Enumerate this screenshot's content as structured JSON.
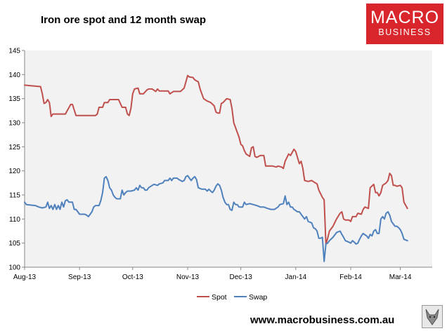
{
  "header": {
    "title": "Iron ore spot and 12 month swap"
  },
  "logo": {
    "line1": "MACRO",
    "line2": "BUSINESS"
  },
  "footer": {
    "url": "www.macrobusiness.com.au"
  },
  "chart_data": {
    "type": "line",
    "title": "Iron ore spot and 12 month swap",
    "xlabel": "",
    "ylabel": "",
    "ylim": [
      100,
      145
    ],
    "yticks": [
      100,
      105,
      110,
      115,
      120,
      125,
      130,
      135,
      140,
      145
    ],
    "xlim": [
      0,
      230
    ],
    "xticks": [
      {
        "label": "Aug-13",
        "x": 0
      },
      {
        "label": "Sep-13",
        "x": 31
      },
      {
        "label": "Oct-13",
        "x": 61
      },
      {
        "label": "Nov-13",
        "x": 92
      },
      {
        "label": "Dec-13",
        "x": 122
      },
      {
        "label": "Jan-14",
        "x": 153
      },
      {
        "label": "Feb-14",
        "x": 184
      },
      {
        "label": "Mar-14",
        "x": 212
      }
    ],
    "grid": false,
    "legend_position": "bottom-center",
    "colors": {
      "Spot": "#c0504d",
      "Swap": "#4f81bd",
      "plot_background": "#f2f2f2",
      "axis": "#868686"
    },
    "series": [
      {
        "name": "Spot",
        "points": [
          [
            0,
            137.8
          ],
          [
            3,
            137.7
          ],
          [
            9,
            137.5
          ],
          [
            10,
            136.0
          ],
          [
            11,
            134.0
          ],
          [
            12,
            134.2
          ],
          [
            13,
            134.8
          ],
          [
            14,
            134.2
          ],
          [
            15,
            131.3
          ],
          [
            16,
            131.8
          ],
          [
            23,
            131.8
          ],
          [
            26,
            133.8
          ],
          [
            27,
            133.8
          ],
          [
            29,
            131.5
          ],
          [
            30,
            131.5
          ],
          [
            40,
            131.5
          ],
          [
            41,
            131.8
          ],
          [
            42,
            133.2
          ],
          [
            44,
            133.2
          ],
          [
            45,
            134.2
          ],
          [
            47,
            134.2
          ],
          [
            48,
            134.8
          ],
          [
            53,
            134.8
          ],
          [
            55,
            133.2
          ],
          [
            57,
            133.2
          ],
          [
            58,
            131.8
          ],
          [
            59,
            131.5
          ],
          [
            60,
            133.0
          ],
          [
            61,
            136.0
          ],
          [
            62,
            137.0
          ],
          [
            64,
            137.2
          ],
          [
            65,
            136.0
          ],
          [
            67,
            136.0
          ],
          [
            69,
            136.8
          ],
          [
            70,
            137.0
          ],
          [
            72,
            137.0
          ],
          [
            74,
            136.5
          ],
          [
            75,
            137.0
          ],
          [
            76,
            136.6
          ],
          [
            78,
            136.6
          ],
          [
            81,
            136.6
          ],
          [
            82,
            136.0
          ],
          [
            84,
            136.5
          ],
          [
            86,
            136.5
          ],
          [
            88,
            136.5
          ],
          [
            90,
            137.2
          ],
          [
            92,
            139.8
          ],
          [
            93,
            139.5
          ],
          [
            95,
            139.4
          ],
          [
            96,
            138.9
          ],
          [
            98,
            138.5
          ],
          [
            99,
            137.0
          ],
          [
            101,
            135.0
          ],
          [
            103,
            134.5
          ],
          [
            105,
            134.2
          ],
          [
            107,
            133.5
          ],
          [
            108,
            132.2
          ],
          [
            109,
            132.0
          ],
          [
            110,
            132.0
          ],
          [
            111,
            134.0
          ],
          [
            112,
            134.2
          ],
          [
            114,
            135.0
          ],
          [
            116,
            134.8
          ],
          [
            117,
            133.0
          ],
          [
            118,
            130.0
          ],
          [
            119,
            129.0
          ],
          [
            121,
            127.0
          ],
          [
            122,
            125.5
          ],
          [
            123,
            125.2
          ],
          [
            124,
            124.2
          ],
          [
            125,
            123.5
          ],
          [
            127,
            123.0
          ],
          [
            128,
            124.8
          ],
          [
            129,
            125.0
          ],
          [
            130,
            123.0
          ],
          [
            131,
            122.8
          ],
          [
            133,
            123.2
          ],
          [
            135,
            123.2
          ],
          [
            136,
            121.0
          ],
          [
            140,
            121.0
          ],
          [
            142,
            120.8
          ],
          [
            143,
            121.0
          ],
          [
            145,
            120.8
          ],
          [
            146,
            120.5
          ],
          [
            147,
            122.0
          ],
          [
            149,
            123.5
          ],
          [
            150,
            123.2
          ],
          [
            152,
            124.5
          ],
          [
            153,
            124.0
          ],
          [
            155,
            121.5
          ],
          [
            156,
            122.0
          ],
          [
            157,
            120.5
          ],
          [
            158,
            118.0
          ],
          [
            160,
            117.8
          ],
          [
            162,
            118.0
          ],
          [
            164,
            117.5
          ],
          [
            165,
            117.3
          ],
          [
            166,
            116.0
          ],
          [
            168,
            114.5
          ],
          [
            169,
            114.0
          ],
          [
            170,
            104.8
          ],
          [
            171,
            106.0
          ],
          [
            172,
            107.5
          ],
          [
            174,
            108.5
          ],
          [
            176,
            110.0
          ],
          [
            178,
            111.2
          ],
          [
            179,
            111.5
          ],
          [
            180,
            110.0
          ],
          [
            181,
            109.8
          ],
          [
            183,
            109.8
          ],
          [
            184,
            109.5
          ],
          [
            185,
            110.5
          ],
          [
            187,
            110.5
          ],
          [
            188,
            111.2
          ],
          [
            190,
            111.0
          ],
          [
            191,
            112.0
          ],
          [
            192,
            112.5
          ],
          [
            194,
            112.2
          ],
          [
            195,
            116.5
          ],
          [
            197,
            117.2
          ],
          [
            198,
            115.5
          ],
          [
            199,
            115.5
          ],
          [
            200,
            114.8
          ],
          [
            201,
            115.5
          ],
          [
            202,
            117.0
          ],
          [
            204,
            117.5
          ],
          [
            205,
            118.0
          ],
          [
            206,
            119.5
          ],
          [
            207,
            119.0
          ],
          [
            208,
            117.0
          ],
          [
            209,
            117.0
          ],
          [
            210,
            116.8
          ],
          [
            212,
            117.0
          ],
          [
            213,
            116.5
          ],
          [
            214,
            113.5
          ],
          [
            216,
            112.2
          ]
        ]
      },
      {
        "name": "Swap",
        "points": [
          [
            0,
            113.5
          ],
          [
            1,
            113.0
          ],
          [
            6,
            112.8
          ],
          [
            8,
            112.5
          ],
          [
            10,
            112.3
          ],
          [
            12,
            112.5
          ],
          [
            13,
            113.5
          ],
          [
            14,
            112.2
          ],
          [
            15,
            112.8
          ],
          [
            16,
            112.0
          ],
          [
            17,
            113.0
          ],
          [
            18,
            112.0
          ],
          [
            19,
            112.8
          ],
          [
            20,
            112.0
          ],
          [
            21,
            113.5
          ],
          [
            22,
            112.5
          ],
          [
            23,
            113.8
          ],
          [
            24,
            114.0
          ],
          [
            25,
            113.5
          ],
          [
            27,
            113.5
          ],
          [
            28,
            112.0
          ],
          [
            29,
            112.0
          ],
          [
            30,
            111.5
          ],
          [
            31,
            111.0
          ],
          [
            34,
            111.0
          ],
          [
            35,
            110.8
          ],
          [
            36,
            110.5
          ],
          [
            37,
            111.0
          ],
          [
            38,
            111.5
          ],
          [
            39,
            112.5
          ],
          [
            40,
            112.8
          ],
          [
            42,
            112.8
          ],
          [
            43,
            113.8
          ],
          [
            44,
            115.5
          ],
          [
            45,
            118.5
          ],
          [
            46,
            118.8
          ],
          [
            47,
            118.0
          ],
          [
            48,
            116.5
          ],
          [
            49,
            116.0
          ],
          [
            50,
            115.0
          ],
          [
            51,
            114.5
          ],
          [
            52,
            114.2
          ],
          [
            54,
            114.2
          ],
          [
            55,
            116.0
          ],
          [
            56,
            115.0
          ],
          [
            57,
            115.5
          ],
          [
            58,
            115.8
          ],
          [
            60,
            115.8
          ],
          [
            62,
            116.0
          ],
          [
            63,
            116.5
          ],
          [
            64,
            116.0
          ],
          [
            65,
            117.0
          ],
          [
            66,
            116.5
          ],
          [
            67,
            116.5
          ],
          [
            68,
            116.0
          ],
          [
            69,
            116.0
          ],
          [
            70,
            116.5
          ],
          [
            72,
            117.0
          ],
          [
            73,
            117.2
          ],
          [
            75,
            117.0
          ],
          [
            76,
            117.3
          ],
          [
            78,
            117.5
          ],
          [
            79,
            118.0
          ],
          [
            81,
            118.0
          ],
          [
            82,
            118.5
          ],
          [
            83,
            118.0
          ],
          [
            84,
            118.5
          ],
          [
            86,
            118.5
          ],
          [
            87,
            118.2
          ],
          [
            89,
            117.8
          ],
          [
            90,
            118.0
          ],
          [
            91,
            118.8
          ],
          [
            92,
            119.0
          ],
          [
            93,
            118.5
          ],
          [
            94,
            118.0
          ],
          [
            95,
            118.5
          ],
          [
            96,
            118.8
          ],
          [
            97,
            118.2
          ],
          [
            98,
            116.5
          ],
          [
            100,
            116.2
          ],
          [
            102,
            116.2
          ],
          [
            103,
            115.8
          ],
          [
            104,
            116.2
          ],
          [
            105,
            115.8
          ],
          [
            106,
            115.5
          ],
          [
            107,
            116.0
          ],
          [
            108,
            116.8
          ],
          [
            109,
            117.3
          ],
          [
            110,
            117.0
          ],
          [
            111,
            116.0
          ],
          [
            112,
            114.5
          ],
          [
            113,
            113.5
          ],
          [
            114,
            113.0
          ],
          [
            115,
            113.0
          ],
          [
            116,
            112.0
          ],
          [
            117,
            111.8
          ],
          [
            118,
            113.5
          ],
          [
            119,
            113.0
          ],
          [
            120,
            113.0
          ],
          [
            121,
            112.5
          ],
          [
            123,
            112.5
          ],
          [
            124,
            113.5
          ],
          [
            125,
            113.0
          ],
          [
            127,
            113.2
          ],
          [
            129,
            113.0
          ],
          [
            131,
            112.8
          ],
          [
            133,
            112.5
          ],
          [
            135,
            112.5
          ],
          [
            137,
            112.2
          ],
          [
            139,
            112.0
          ],
          [
            141,
            112.0
          ],
          [
            143,
            112.5
          ],
          [
            144,
            113.0
          ],
          [
            146,
            113.2
          ],
          [
            147,
            114.8
          ],
          [
            148,
            113.0
          ],
          [
            149,
            113.5
          ],
          [
            150,
            112.5
          ],
          [
            151,
            112.5
          ],
          [
            152,
            112.0
          ],
          [
            154,
            111.5
          ],
          [
            155,
            111.5
          ],
          [
            157,
            110.5
          ],
          [
            158,
            110.0
          ],
          [
            159,
            110.5
          ],
          [
            160,
            109.5
          ],
          [
            162,
            109.2
          ],
          [
            163,
            108.2
          ],
          [
            164,
            108.0
          ],
          [
            165,
            107.5
          ],
          [
            166,
            106.0
          ],
          [
            167,
            106.0
          ],
          [
            168,
            106.2
          ],
          [
            169,
            101.2
          ],
          [
            170,
            104.8
          ],
          [
            171,
            105.0
          ],
          [
            172,
            105.5
          ],
          [
            174,
            106.2
          ],
          [
            176,
            107.2
          ],
          [
            178,
            107.5
          ],
          [
            179,
            106.8
          ],
          [
            180,
            106.2
          ],
          [
            181,
            105.5
          ],
          [
            183,
            105.2
          ],
          [
            184,
            105.0
          ],
          [
            185,
            105.5
          ],
          [
            186,
            105.2
          ],
          [
            187,
            104.8
          ],
          [
            188,
            105.0
          ],
          [
            189,
            105.8
          ],
          [
            190,
            106.5
          ],
          [
            191,
            107.0
          ],
          [
            193,
            106.5
          ],
          [
            194,
            106.0
          ],
          [
            195,
            106.8
          ],
          [
            196,
            106.5
          ],
          [
            197,
            107.5
          ],
          [
            198,
            107.8
          ],
          [
            199,
            107.0
          ],
          [
            200,
            107.0
          ],
          [
            201,
            110.0
          ],
          [
            202,
            110.5
          ],
          [
            203,
            110.0
          ],
          [
            204,
            111.2
          ],
          [
            205,
            111.5
          ],
          [
            206,
            110.8
          ],
          [
            207,
            109.5
          ],
          [
            208,
            109.0
          ],
          [
            209,
            108.5
          ],
          [
            210,
            108.5
          ],
          [
            211,
            108.2
          ],
          [
            212,
            107.8
          ],
          [
            213,
            107.0
          ],
          [
            214,
            105.8
          ],
          [
            216,
            105.5
          ]
        ]
      }
    ]
  }
}
